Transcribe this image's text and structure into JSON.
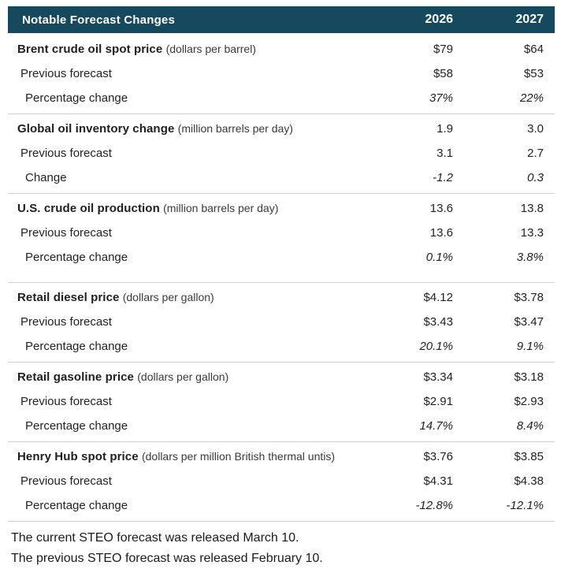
{
  "table": {
    "title": "Notable Forecast Changes",
    "year_columns": [
      "2026",
      "2027"
    ],
    "sections": [
      {
        "label": "Brent crude oil spot price",
        "unit": "(dollars per barrel)",
        "current": [
          "$79",
          "$64"
        ],
        "previous_label": "Previous forecast",
        "previous": [
          "$58",
          "$53"
        ],
        "change_label": "Percentage change",
        "change": [
          "37%",
          "22%"
        ],
        "extra_gap": false
      },
      {
        "label": "Global oil inventory change",
        "unit": "(million barrels per day)",
        "current": [
          "1.9",
          "3.0"
        ],
        "previous_label": "Previous forecast",
        "previous": [
          "3.1",
          "2.7"
        ],
        "change_label": "Change",
        "change": [
          "-1.2",
          "0.3"
        ],
        "extra_gap": false
      },
      {
        "label": "U.S. crude oil production",
        "unit": "(million barrels per day)",
        "current": [
          "13.6",
          "13.8"
        ],
        "previous_label": "Previous forecast",
        "previous": [
          "13.6",
          "13.3"
        ],
        "change_label": "Percentage change",
        "change": [
          "0.1%",
          "3.8%"
        ],
        "extra_gap": true
      },
      {
        "label": "Retail diesel price",
        "unit": "(dollars per gallon)",
        "current": [
          "$4.12",
          "$3.78"
        ],
        "previous_label": "Previous forecast",
        "previous": [
          "$3.43",
          "$3.47"
        ],
        "change_label": "Percentage change",
        "change": [
          "20.1%",
          "9.1%"
        ],
        "extra_gap": false
      },
      {
        "label": "Retail gasoline price",
        "unit": "(dollars per gallon)",
        "current": [
          "$3.34",
          "$3.18"
        ],
        "previous_label": "Previous forecast",
        "previous": [
          "$2.91",
          "$2.93"
        ],
        "change_label": "Percentage change",
        "change": [
          "14.7%",
          "8.4%"
        ],
        "extra_gap": false
      },
      {
        "label": "Henry Hub spot price",
        "unit": "(dollars per million British thermal untis)",
        "current": [
          "$3.76",
          "$3.85"
        ],
        "previous_label": "Previous forecast",
        "previous": [
          "$4.31",
          "$4.38"
        ],
        "change_label": "Percentage change",
        "change": [
          "-12.8%",
          "-12.1%"
        ],
        "extra_gap": false
      }
    ]
  },
  "footer": {
    "line1": "The current STEO forecast was released March 10.",
    "line2": "The previous STEO forecast was released February 10."
  },
  "colors": {
    "header_bg": "#17495e",
    "header_text": "#ffffff",
    "separator": "#cfcfcf",
    "body_text": "#222222"
  }
}
